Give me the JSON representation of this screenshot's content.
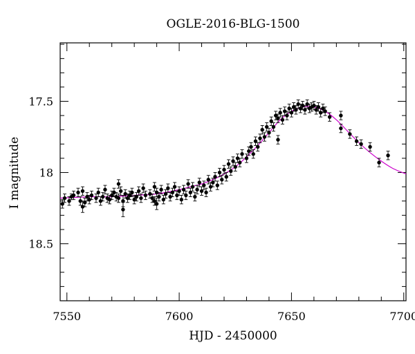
{
  "chart_data": {
    "type": "scatter",
    "title": "OGLE-2016-BLG-1500",
    "xlabel": "HJD - 2450000",
    "ylabel": "I magnitude",
    "xlim": [
      7547,
      7701
    ],
    "ylim": [
      18.9,
      17.09
    ],
    "y_inverted": true,
    "grid": false,
    "x_ticks": [
      {
        "value": 7550,
        "label": "7550"
      },
      {
        "value": 7600,
        "label": "7600"
      },
      {
        "value": 7650,
        "label": "7650"
      },
      {
        "value": 7700,
        "label": "7700"
      }
    ],
    "y_ticks": [
      {
        "value": 17.5,
        "label": "17.5"
      },
      {
        "value": 18,
        "label": "18"
      },
      {
        "value": 18.5,
        "label": "18.5"
      }
    ],
    "colors": {
      "data": "#000000",
      "model": "#cc00cc"
    },
    "series": [
      {
        "kind": "points_with_errorbars",
        "points": [
          [
            7548,
            18.22,
            0.03
          ],
          [
            7549,
            18.18,
            0.03
          ],
          [
            7551,
            18.2,
            0.03
          ],
          [
            7552,
            18.17,
            0.02
          ],
          [
            7553,
            18.16,
            0.03
          ],
          [
            7555,
            18.14,
            0.03
          ],
          [
            7556,
            18.2,
            0.03
          ],
          [
            7557,
            18.24,
            0.04
          ],
          [
            7557,
            18.13,
            0.03
          ],
          [
            7558,
            18.21,
            0.03
          ],
          [
            7559,
            18.17,
            0.03
          ],
          [
            7560,
            18.19,
            0.03
          ],
          [
            7561,
            18.16,
            0.03
          ],
          [
            7563,
            18.18,
            0.03
          ],
          [
            7564,
            18.14,
            0.03
          ],
          [
            7565,
            18.2,
            0.03
          ],
          [
            7566,
            18.17,
            0.03
          ],
          [
            7567,
            18.12,
            0.03
          ],
          [
            7568,
            18.18,
            0.03
          ],
          [
            7569,
            18.19,
            0.03
          ],
          [
            7570,
            18.16,
            0.03
          ],
          [
            7571,
            18.14,
            0.03
          ],
          [
            7572,
            18.17,
            0.03
          ],
          [
            7573,
            18.08,
            0.03
          ],
          [
            7573,
            18.18,
            0.03
          ],
          [
            7574,
            18.13,
            0.03
          ],
          [
            7575,
            18.26,
            0.05
          ],
          [
            7575,
            18.2,
            0.04
          ],
          [
            7576,
            18.15,
            0.03
          ],
          [
            7577,
            18.18,
            0.03
          ],
          [
            7578,
            18.16,
            0.03
          ],
          [
            7579,
            18.14,
            0.03
          ],
          [
            7580,
            18.19,
            0.03
          ],
          [
            7581,
            18.17,
            0.03
          ],
          [
            7582,
            18.13,
            0.03
          ],
          [
            7583,
            18.18,
            0.03
          ],
          [
            7584,
            18.11,
            0.03
          ],
          [
            7585,
            18.16,
            0.03
          ],
          [
            7587,
            18.15,
            0.03
          ],
          [
            7588,
            18.18,
            0.03
          ],
          [
            7589,
            18.1,
            0.03
          ],
          [
            7589,
            18.2,
            0.03
          ],
          [
            7590,
            18.14,
            0.03
          ],
          [
            7590,
            18.22,
            0.04
          ],
          [
            7591,
            18.17,
            0.03
          ],
          [
            7592,
            18.12,
            0.03
          ],
          [
            7593,
            18.19,
            0.03
          ],
          [
            7594,
            18.15,
            0.03
          ],
          [
            7595,
            18.11,
            0.03
          ],
          [
            7596,
            18.17,
            0.03
          ],
          [
            7597,
            18.14,
            0.03
          ],
          [
            7598,
            18.1,
            0.03
          ],
          [
            7599,
            18.16,
            0.03
          ],
          [
            7600,
            18.13,
            0.03
          ],
          [
            7601,
            18.19,
            0.03
          ],
          [
            7602,
            18.12,
            0.03
          ],
          [
            7603,
            18.16,
            0.03
          ],
          [
            7604,
            18.08,
            0.03
          ],
          [
            7605,
            18.14,
            0.03
          ],
          [
            7606,
            18.1,
            0.03
          ],
          [
            7607,
            18.17,
            0.03
          ],
          [
            7608,
            18.12,
            0.03
          ],
          [
            7609,
            18.07,
            0.03
          ],
          [
            7610,
            18.13,
            0.03
          ],
          [
            7611,
            18.09,
            0.03
          ],
          [
            7612,
            18.14,
            0.03
          ],
          [
            7613,
            18.05,
            0.03
          ],
          [
            7614,
            18.1,
            0.03
          ],
          [
            7615,
            18.07,
            0.03
          ],
          [
            7616,
            18.03,
            0.03
          ],
          [
            7617,
            18.09,
            0.03
          ],
          [
            7618,
            18.0,
            0.03
          ],
          [
            7619,
            18.05,
            0.03
          ],
          [
            7620,
            17.98,
            0.03
          ],
          [
            7621,
            18.03,
            0.03
          ],
          [
            7622,
            17.94,
            0.03
          ],
          [
            7623,
            17.99,
            0.03
          ],
          [
            7624,
            17.92,
            0.03
          ],
          [
            7625,
            17.96,
            0.03
          ],
          [
            7626,
            17.9,
            0.03
          ],
          [
            7627,
            17.93,
            0.03
          ],
          [
            7628,
            17.87,
            0.03
          ],
          [
            7630,
            17.9,
            0.03
          ],
          [
            7631,
            17.85,
            0.03
          ],
          [
            7632,
            17.82,
            0.03
          ],
          [
            7633,
            17.87,
            0.03
          ],
          [
            7634,
            17.78,
            0.03
          ],
          [
            7635,
            17.82,
            0.03
          ],
          [
            7636,
            17.76,
            0.03
          ],
          [
            7637,
            17.7,
            0.03
          ],
          [
            7638,
            17.75,
            0.03
          ],
          [
            7639,
            17.68,
            0.03
          ],
          [
            7640,
            17.72,
            0.03
          ],
          [
            7641,
            17.64,
            0.03
          ],
          [
            7642,
            17.68,
            0.03
          ],
          [
            7643,
            17.6,
            0.03
          ],
          [
            7644,
            17.77,
            0.03
          ],
          [
            7644,
            17.62,
            0.03
          ],
          [
            7645,
            17.58,
            0.03
          ],
          [
            7646,
            17.63,
            0.03
          ],
          [
            7647,
            17.57,
            0.03
          ],
          [
            7648,
            17.6,
            0.03
          ],
          [
            7649,
            17.55,
            0.03
          ],
          [
            7650,
            17.58,
            0.03
          ],
          [
            7651,
            17.54,
            0.03
          ],
          [
            7652,
            17.56,
            0.03
          ],
          [
            7653,
            17.52,
            0.03
          ],
          [
            7654,
            17.55,
            0.03
          ],
          [
            7655,
            17.53,
            0.03
          ],
          [
            7656,
            17.56,
            0.03
          ],
          [
            7657,
            17.52,
            0.03
          ],
          [
            7658,
            17.55,
            0.03
          ],
          [
            7659,
            17.54,
            0.03
          ],
          [
            7660,
            17.53,
            0.03
          ],
          [
            7661,
            17.56,
            0.03
          ],
          [
            7662,
            17.54,
            0.03
          ],
          [
            7663,
            17.58,
            0.03
          ],
          [
            7664,
            17.55,
            0.03
          ],
          [
            7665,
            17.57,
            0.03
          ],
          [
            7667,
            17.61,
            0.03
          ],
          [
            7672,
            17.6,
            0.03
          ],
          [
            7672,
            17.69,
            0.03
          ],
          [
            7676,
            17.73,
            0.03
          ],
          [
            7679,
            17.78,
            0.03
          ],
          [
            7681,
            17.8,
            0.03
          ],
          [
            7685,
            17.82,
            0.03
          ],
          [
            7689,
            17.93,
            0.03
          ],
          [
            7693,
            17.88,
            0.03
          ]
        ]
      },
      {
        "kind": "model_curve",
        "x": [
          7547,
          7560,
          7570,
          7580,
          7590,
          7600,
          7605,
          7610,
          7615,
          7620,
          7625,
          7630,
          7635,
          7640,
          7645,
          7650,
          7655,
          7660,
          7665,
          7670,
          7675,
          7680,
          7685,
          7690,
          7695,
          7701
        ],
        "y": [
          18.18,
          18.17,
          18.17,
          18.16,
          18.15,
          18.12,
          18.1,
          18.08,
          18.05,
          18.01,
          17.96,
          17.89,
          17.81,
          17.72,
          17.63,
          17.57,
          17.54,
          17.54,
          17.57,
          17.63,
          17.71,
          17.79,
          17.86,
          17.92,
          17.97,
          18.01
        ]
      }
    ]
  }
}
